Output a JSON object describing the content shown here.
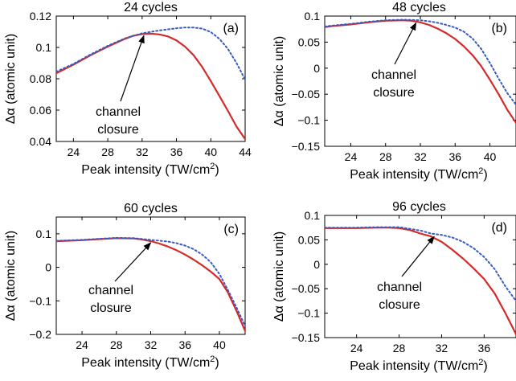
{
  "chart_data": [
    {
      "type": "line",
      "title": "24 cycles",
      "panel_label": "(a)",
      "xlabel": "Peak intensity (TW/cm",
      "xlabel_sup": "2",
      "xlabel_close": ")",
      "ylabel": "Δα (atomic unit)",
      "xlim": [
        22,
        44
      ],
      "ylim": [
        0.04,
        0.12
      ],
      "xticks": [
        24,
        28,
        32,
        36,
        40,
        44
      ],
      "xtick_labels": [
        "24",
        "28",
        "32",
        "36",
        "40",
        "44"
      ],
      "yticks": [
        0.04,
        0.06,
        0.08,
        0.1,
        0.12
      ],
      "ytick_labels": [
        "0.04",
        "0.06",
        "0.08",
        "0.1",
        "0.12"
      ],
      "annotation": {
        "line1": "channel",
        "line2": "closure",
        "arrow_target": [
          32.2,
          0.1085
        ]
      },
      "series": [
        {
          "style": "solid",
          "color": "#d42a2a",
          "x": [
            22,
            24,
            26,
            28,
            30,
            31,
            32,
            33,
            34,
            35,
            36,
            37,
            38,
            39,
            40,
            41,
            42,
            43,
            44
          ],
          "y": [
            0.0835,
            0.089,
            0.095,
            0.1005,
            0.1055,
            0.1075,
            0.1085,
            0.1088,
            0.1083,
            0.107,
            0.1045,
            0.1005,
            0.095,
            0.0875,
            0.0785,
            0.069,
            0.0595,
            0.0495,
            0.0415
          ]
        },
        {
          "style": "dotted",
          "color": "#3a5bbf",
          "x": [
            22,
            24,
            26,
            28,
            30,
            32,
            34,
            36,
            37,
            38,
            39,
            40,
            41,
            42,
            43,
            44
          ],
          "y": [
            0.0845,
            0.0895,
            0.0955,
            0.101,
            0.1058,
            0.109,
            0.1108,
            0.1122,
            0.1127,
            0.1127,
            0.112,
            0.1098,
            0.1055,
            0.099,
            0.09,
            0.0795
          ]
        }
      ]
    },
    {
      "type": "line",
      "title": "48 cycles",
      "panel_label": "(b)",
      "xlabel": "Peak intensity (TW/cm",
      "xlabel_sup": "2",
      "xlabel_close": ")",
      "ylabel": "Δα (atomic unit)",
      "xlim": [
        21,
        43
      ],
      "ylim": [
        -0.15,
        0.1
      ],
      "xticks": [
        24,
        28,
        32,
        36,
        40
      ],
      "xtick_labels": [
        "24",
        "28",
        "32",
        "36",
        "40"
      ],
      "yticks": [
        -0.15,
        -0.1,
        -0.05,
        0,
        0.05,
        0.1
      ],
      "ytick_labels": [
        "−0.15",
        "−0.1",
        "−0.05",
        "0",
        "0.05",
        "0.1"
      ],
      "annotation": {
        "line1": "channel",
        "line2": "closure",
        "arrow_target": [
          31.5,
          0.09
        ]
      },
      "series": [
        {
          "style": "solid",
          "color": "#d42a2a",
          "x": [
            21,
            22,
            24,
            26,
            28,
            30,
            31,
            32,
            33,
            34,
            35,
            36,
            37,
            38,
            39,
            40,
            41,
            42,
            43
          ],
          "y": [
            0.079,
            0.081,
            0.084,
            0.088,
            0.091,
            0.092,
            0.091,
            0.088,
            0.083,
            0.076,
            0.067,
            0.056,
            0.042,
            0.025,
            0.004,
            -0.022,
            -0.05,
            -0.08,
            -0.105
          ]
        },
        {
          "style": "dotted",
          "color": "#3a5bbf",
          "x": [
            21,
            22,
            24,
            26,
            28,
            30,
            32,
            33,
            34,
            35,
            36,
            37,
            38,
            39,
            40,
            41,
            42,
            43
          ],
          "y": [
            0.08,
            0.082,
            0.085,
            0.089,
            0.092,
            0.093,
            0.092,
            0.09,
            0.087,
            0.083,
            0.078,
            0.07,
            0.057,
            0.037,
            0.01,
            -0.02,
            -0.048,
            -0.07
          ]
        }
      ]
    },
    {
      "type": "line",
      "title": "60 cycles",
      "panel_label": "(c)",
      "xlabel": "Peak intensity (TW/cm",
      "xlabel_sup": "2",
      "xlabel_close": ")",
      "ylabel": "Δα (atomic unit)",
      "xlim": [
        21,
        43
      ],
      "ylim": [
        -0.2,
        0.15
      ],
      "xticks": [
        24,
        28,
        32,
        36,
        40
      ],
      "xtick_labels": [
        "24",
        "28",
        "32",
        "36",
        "40"
      ],
      "yticks": [
        -0.2,
        -0.1,
        0,
        0.1
      ],
      "ytick_labels": [
        "−0.2",
        "−0.1",
        "0",
        "0.1"
      ],
      "annotation": {
        "line1": "channel",
        "line2": "closure",
        "arrow_target": [
          32,
          0.078
        ]
      },
      "series": [
        {
          "style": "solid",
          "color": "#d42a2a",
          "x": [
            21,
            22,
            24,
            26,
            28,
            30,
            31,
            32,
            33,
            34,
            35,
            36,
            37,
            38,
            39,
            40,
            41,
            42,
            43
          ],
          "y": [
            0.078,
            0.079,
            0.081,
            0.084,
            0.087,
            0.086,
            0.083,
            0.078,
            0.071,
            0.062,
            0.051,
            0.038,
            0.023,
            0.006,
            -0.013,
            -0.035,
            -0.075,
            -0.13,
            -0.19
          ]
        },
        {
          "style": "dotted",
          "color": "#3a5bbf",
          "x": [
            21,
            22,
            24,
            26,
            28,
            30,
            32,
            34,
            35,
            36,
            37,
            38,
            39,
            40,
            41,
            42,
            43
          ],
          "y": [
            0.079,
            0.08,
            0.082,
            0.085,
            0.088,
            0.087,
            0.082,
            0.077,
            0.072,
            0.065,
            0.054,
            0.038,
            0.015,
            -0.02,
            -0.068,
            -0.12,
            -0.175
          ]
        }
      ]
    },
    {
      "type": "line",
      "title": "96 cycles",
      "panel_label": "(d)",
      "xlabel": "Peak intensity (TW/cm",
      "xlabel_sup": "2",
      "xlabel_close": ")",
      "ylabel": "Δα (atomic unit)",
      "xlim": [
        21,
        39
      ],
      "ylim": [
        -0.15,
        0.1
      ],
      "xticks": [
        24,
        28,
        32,
        36
      ],
      "xtick_labels": [
        "24",
        "28",
        "32",
        "36"
      ],
      "yticks": [
        -0.15,
        -0.1,
        -0.05,
        0,
        0.05,
        0.1
      ],
      "ytick_labels": [
        "−0.15",
        "−0.1",
        "−0.05",
        "0",
        "0.05",
        "0.1"
      ],
      "annotation": {
        "line1": "channel",
        "line2": "closure",
        "arrow_target": [
          31.3,
          0.06
        ]
      },
      "series": [
        {
          "style": "solid",
          "color": "#d42a2a",
          "x": [
            21,
            22,
            24,
            26,
            27,
            28,
            29,
            30,
            31,
            32,
            33,
            34,
            35,
            36,
            37,
            38,
            39
          ],
          "y": [
            0.074,
            0.074,
            0.074,
            0.075,
            0.075,
            0.074,
            0.07,
            0.063,
            0.057,
            0.046,
            0.03,
            0.012,
            -0.008,
            -0.03,
            -0.06,
            -0.1,
            -0.143
          ]
        },
        {
          "style": "dotted",
          "color": "#3a5bbf",
          "x": [
            21,
            22,
            24,
            26,
            28,
            30,
            31,
            32,
            33,
            34,
            35,
            36,
            37,
            38,
            39
          ],
          "y": [
            0.075,
            0.075,
            0.075,
            0.076,
            0.076,
            0.069,
            0.063,
            0.06,
            0.055,
            0.046,
            0.033,
            0.015,
            -0.01,
            -0.045,
            -0.075
          ]
        }
      ]
    }
  ]
}
